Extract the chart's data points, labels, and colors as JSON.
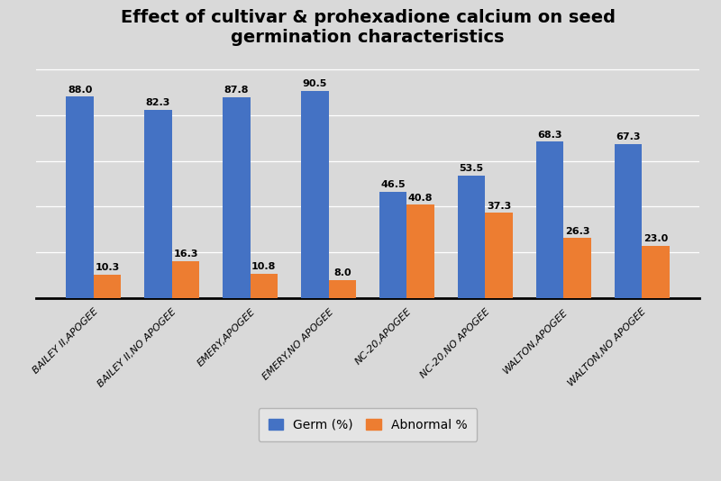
{
  "title": "Effect of cultivar & prohexadione calcium on seed\ngermination characteristics",
  "categories": [
    "BAILEY II,APOGEE",
    "BAILEY II,NO APOGEE",
    "EMERY,APOGEE",
    "EMERY,NO APOGEE",
    "NC-20,APOGEE",
    "NC-20,NO APOGEE",
    "WALTON,APOGEE",
    "WALTON,NO APOGEE"
  ],
  "germ": [
    88.0,
    82.3,
    87.8,
    90.5,
    46.5,
    53.5,
    68.3,
    67.3
  ],
  "abnormal": [
    10.3,
    16.3,
    10.8,
    8.0,
    40.8,
    37.3,
    26.3,
    23.0
  ],
  "germ_color": "#4472C4",
  "abnormal_color": "#ED7D31",
  "background_color": "#D9D9D9",
  "legend_germ": "Germ (%)",
  "legend_abnormal": "Abnormal %",
  "ylim": [
    0,
    105
  ],
  "bar_width": 0.35,
  "title_fontsize": 14,
  "label_fontsize": 8,
  "tick_fontsize": 8,
  "legend_fontsize": 10
}
